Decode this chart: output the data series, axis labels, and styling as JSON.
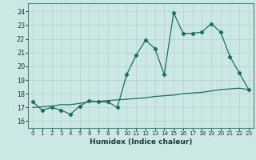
{
  "title": "",
  "xlabel": "Humidex (Indice chaleur)",
  "background_color": "#cce8e4",
  "grid_color": "#b8d4d0",
  "line_color": "#1a6e65",
  "xlim": [
    -0.5,
    23.5
  ],
  "ylim": [
    15.5,
    24.6
  ],
  "yticks": [
    16,
    17,
    18,
    19,
    20,
    21,
    22,
    23,
    24
  ],
  "xticks": [
    0,
    1,
    2,
    3,
    4,
    5,
    6,
    7,
    8,
    9,
    10,
    11,
    12,
    13,
    14,
    15,
    16,
    17,
    18,
    19,
    20,
    21,
    22,
    23
  ],
  "series1_x": [
    0,
    1,
    2,
    3,
    4,
    5,
    6,
    7,
    8,
    9,
    10,
    11,
    12,
    13,
    14,
    15,
    16,
    17,
    18,
    19,
    20,
    21,
    22,
    23
  ],
  "series1_y": [
    17.4,
    16.8,
    17.0,
    16.8,
    16.5,
    17.1,
    17.5,
    17.4,
    17.4,
    17.0,
    19.4,
    20.8,
    21.9,
    21.3,
    19.4,
    23.9,
    22.4,
    22.4,
    22.5,
    23.1,
    22.5,
    20.7,
    19.5,
    18.3
  ],
  "series2_x": [
    0,
    1,
    2,
    3,
    4,
    5,
    6,
    7,
    8,
    9,
    10,
    11,
    12,
    13,
    14,
    15,
    16,
    17,
    18,
    19,
    20,
    21,
    22,
    23
  ],
  "series2_y": [
    17.0,
    17.05,
    17.1,
    17.2,
    17.2,
    17.3,
    17.4,
    17.45,
    17.5,
    17.55,
    17.6,
    17.65,
    17.7,
    17.8,
    17.85,
    17.9,
    18.0,
    18.05,
    18.1,
    18.2,
    18.3,
    18.35,
    18.4,
    18.3
  ]
}
